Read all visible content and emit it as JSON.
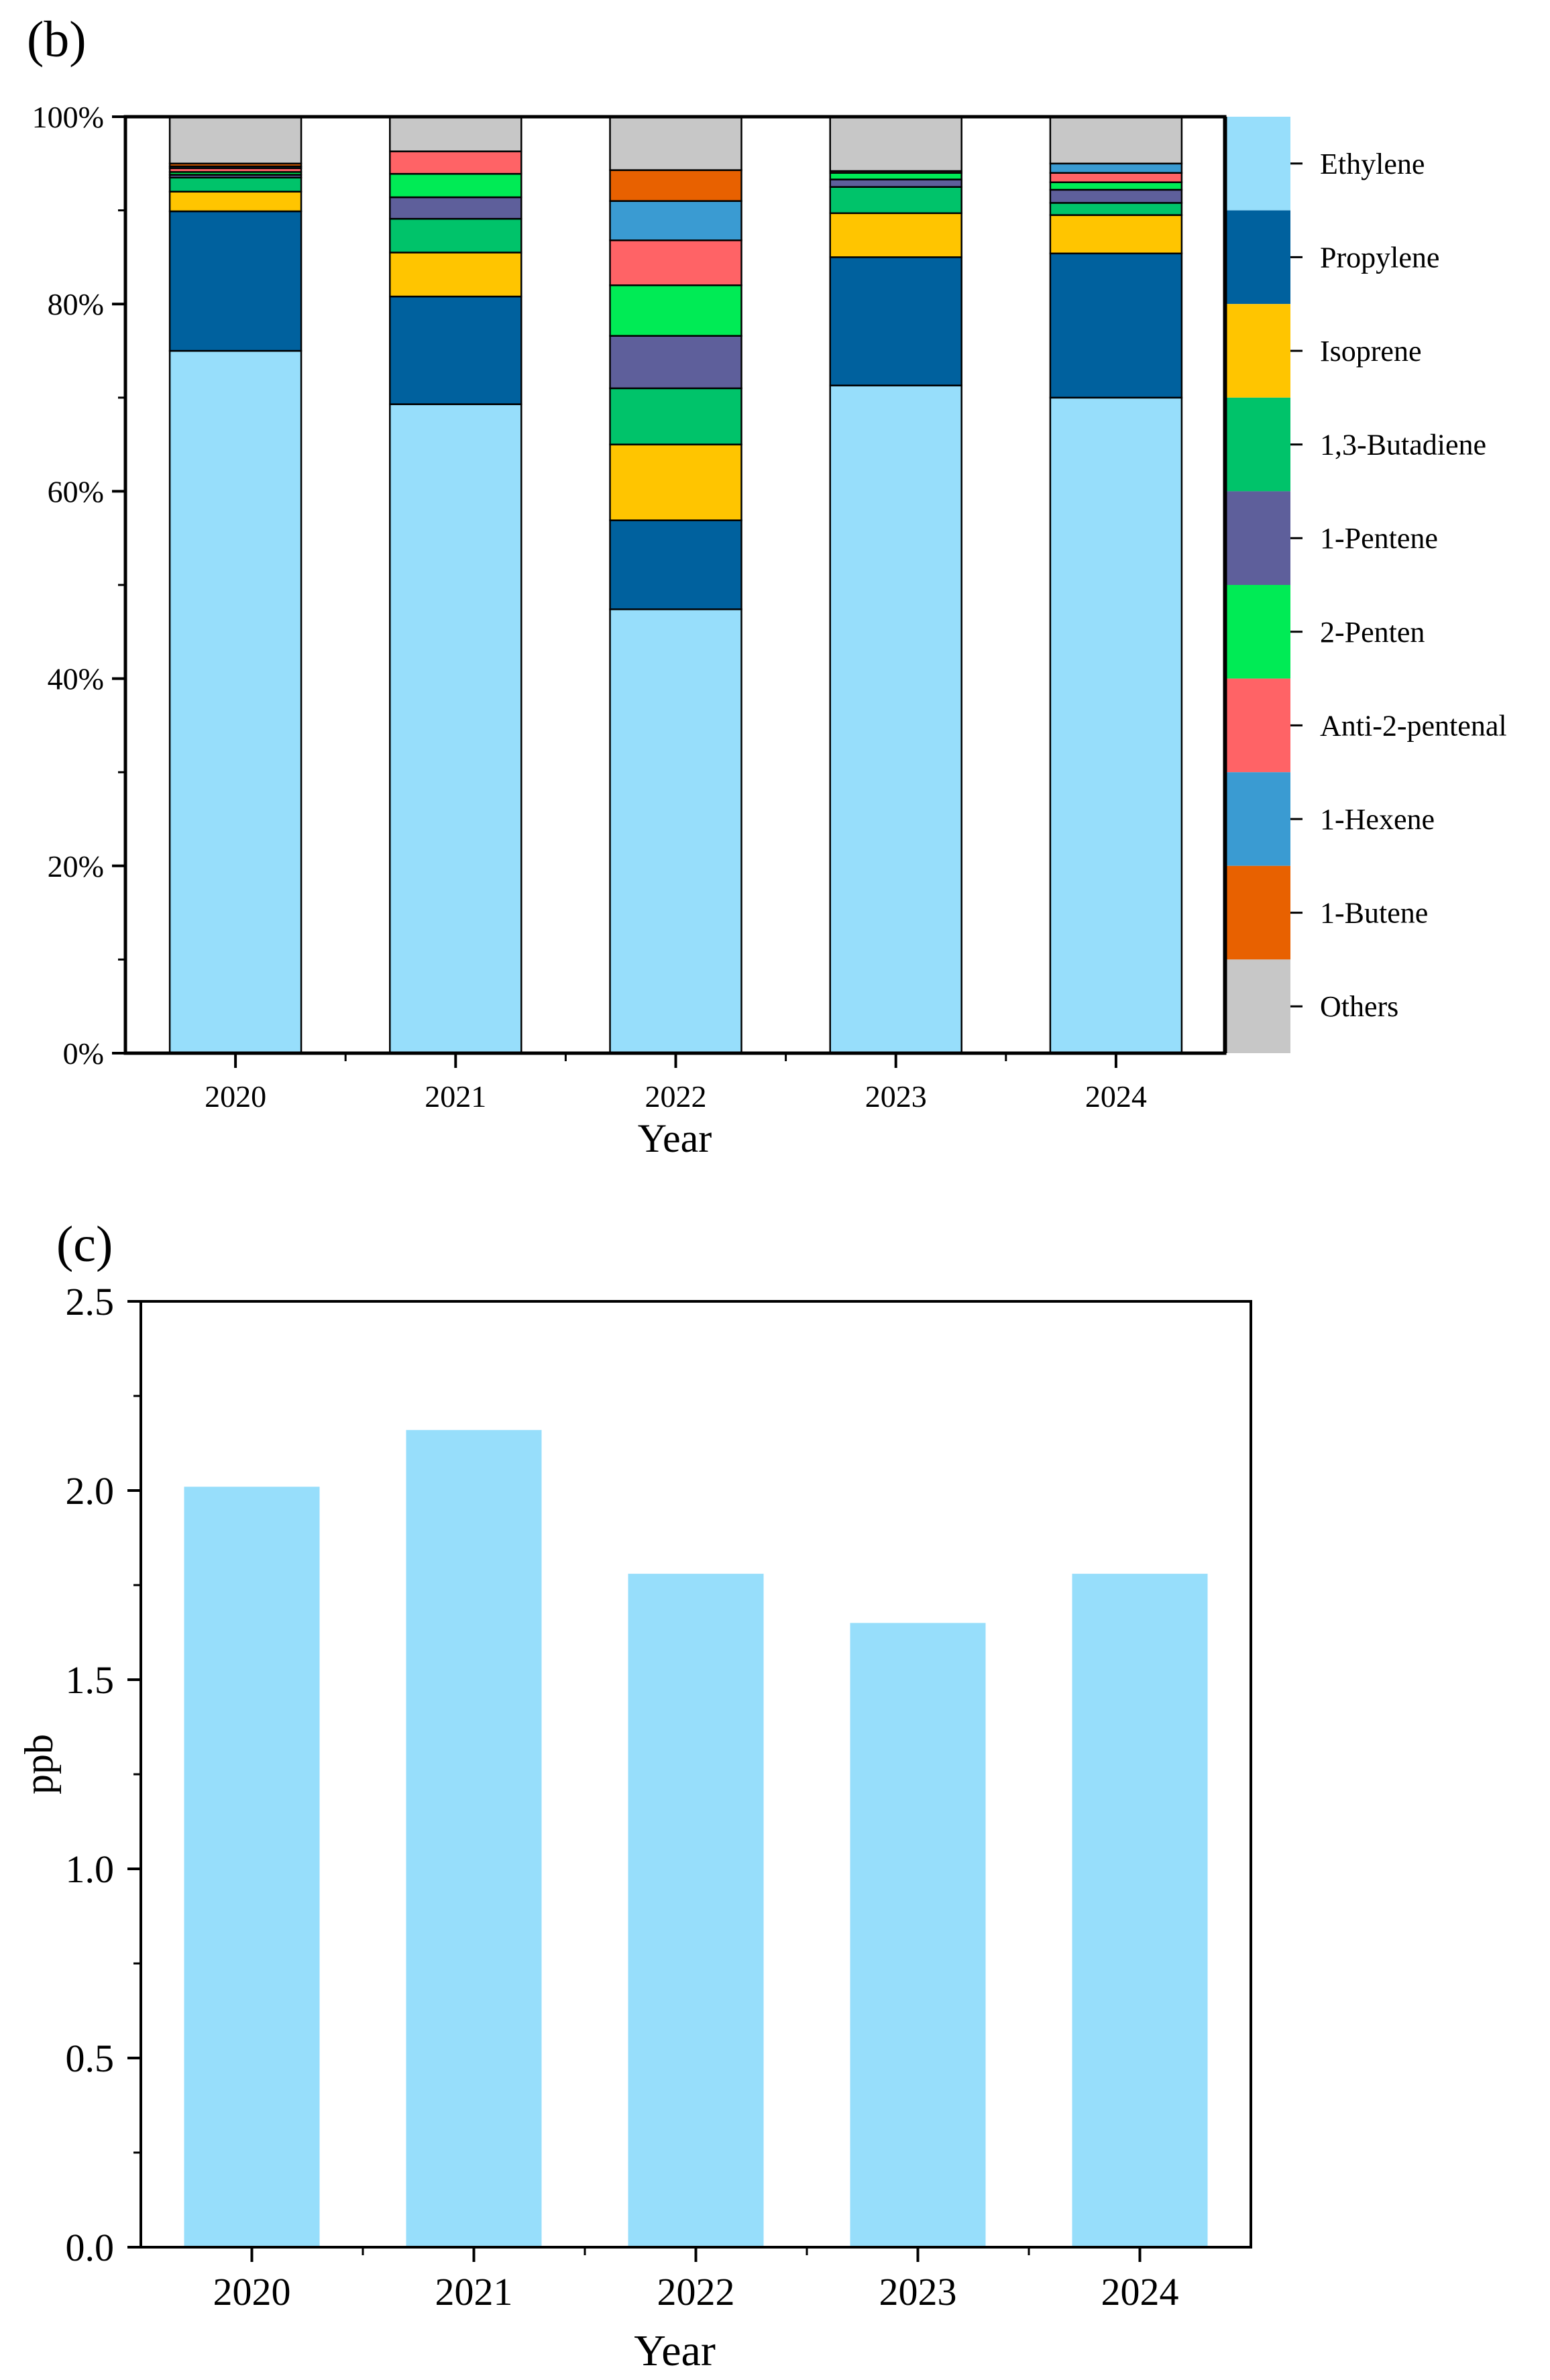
{
  "chart_data": [
    {
      "panel_label": "(b)",
      "type": "bar",
      "stacked": true,
      "categories": [
        "2020",
        "2021",
        "2022",
        "2023",
        "2024"
      ],
      "xlabel": "Year",
      "ylabel": "",
      "ylim": [
        0,
        100
      ],
      "yticks": [
        "0%",
        "20%",
        "40%",
        "60%",
        "80%",
        "100%"
      ],
      "legend_position": "right",
      "series": [
        {
          "name": "Ethylene",
          "color": "#97DEFB",
          "values": [
            75.0,
            69.3,
            47.4,
            71.3,
            70.0
          ]
        },
        {
          "name": "Propylene",
          "color": "#00619E",
          "values": [
            14.9,
            11.5,
            9.5,
            13.7,
            15.4
          ]
        },
        {
          "name": "Isoprene",
          "color": "#FFC500",
          "values": [
            2.1,
            4.7,
            8.1,
            4.7,
            4.1
          ]
        },
        {
          "name": "1,3-Butadiene",
          "color": "#00C36A",
          "values": [
            1.5,
            3.6,
            6.0,
            2.8,
            1.3
          ]
        },
        {
          "name": "1-Pentene",
          "color": "#5E5F9B",
          "values": [
            0.3,
            2.3,
            5.6,
            0.8,
            1.4
          ]
        },
        {
          "name": "2-Penten",
          "color": "#00EB55",
          "values": [
            0.3,
            2.5,
            5.4,
            0.7,
            0.8
          ]
        },
        {
          "name": "Anti-2-pentenal",
          "color": "#FF6366",
          "values": [
            0.4,
            2.4,
            4.8,
            0.2,
            1.0
          ]
        },
        {
          "name": "1-Hexene",
          "color": "#3A9BD2",
          "values": [
            0.2,
            0.0,
            4.2,
            0.0,
            1.0
          ]
        },
        {
          "name": "1-Butene",
          "color": "#E86100",
          "values": [
            0.3,
            0.0,
            3.3,
            0.0,
            0.0
          ]
        },
        {
          "name": "Others",
          "color": "#C7C7C7",
          "values": [
            5.0,
            3.7,
            5.7,
            5.8,
            5.0
          ]
        }
      ]
    },
    {
      "panel_label": "(c)",
      "type": "bar",
      "categories": [
        "2020",
        "2021",
        "2022",
        "2023",
        "2024"
      ],
      "values": [
        2.01,
        2.16,
        1.78,
        1.65,
        1.78
      ],
      "color": "#97DEFB",
      "xlabel": "Year",
      "ylabel": "ppb",
      "ylim": [
        0,
        2.5
      ],
      "yticks": [
        "0.0",
        "0.5",
        "1.0",
        "1.5",
        "2.0",
        "2.5"
      ]
    }
  ]
}
